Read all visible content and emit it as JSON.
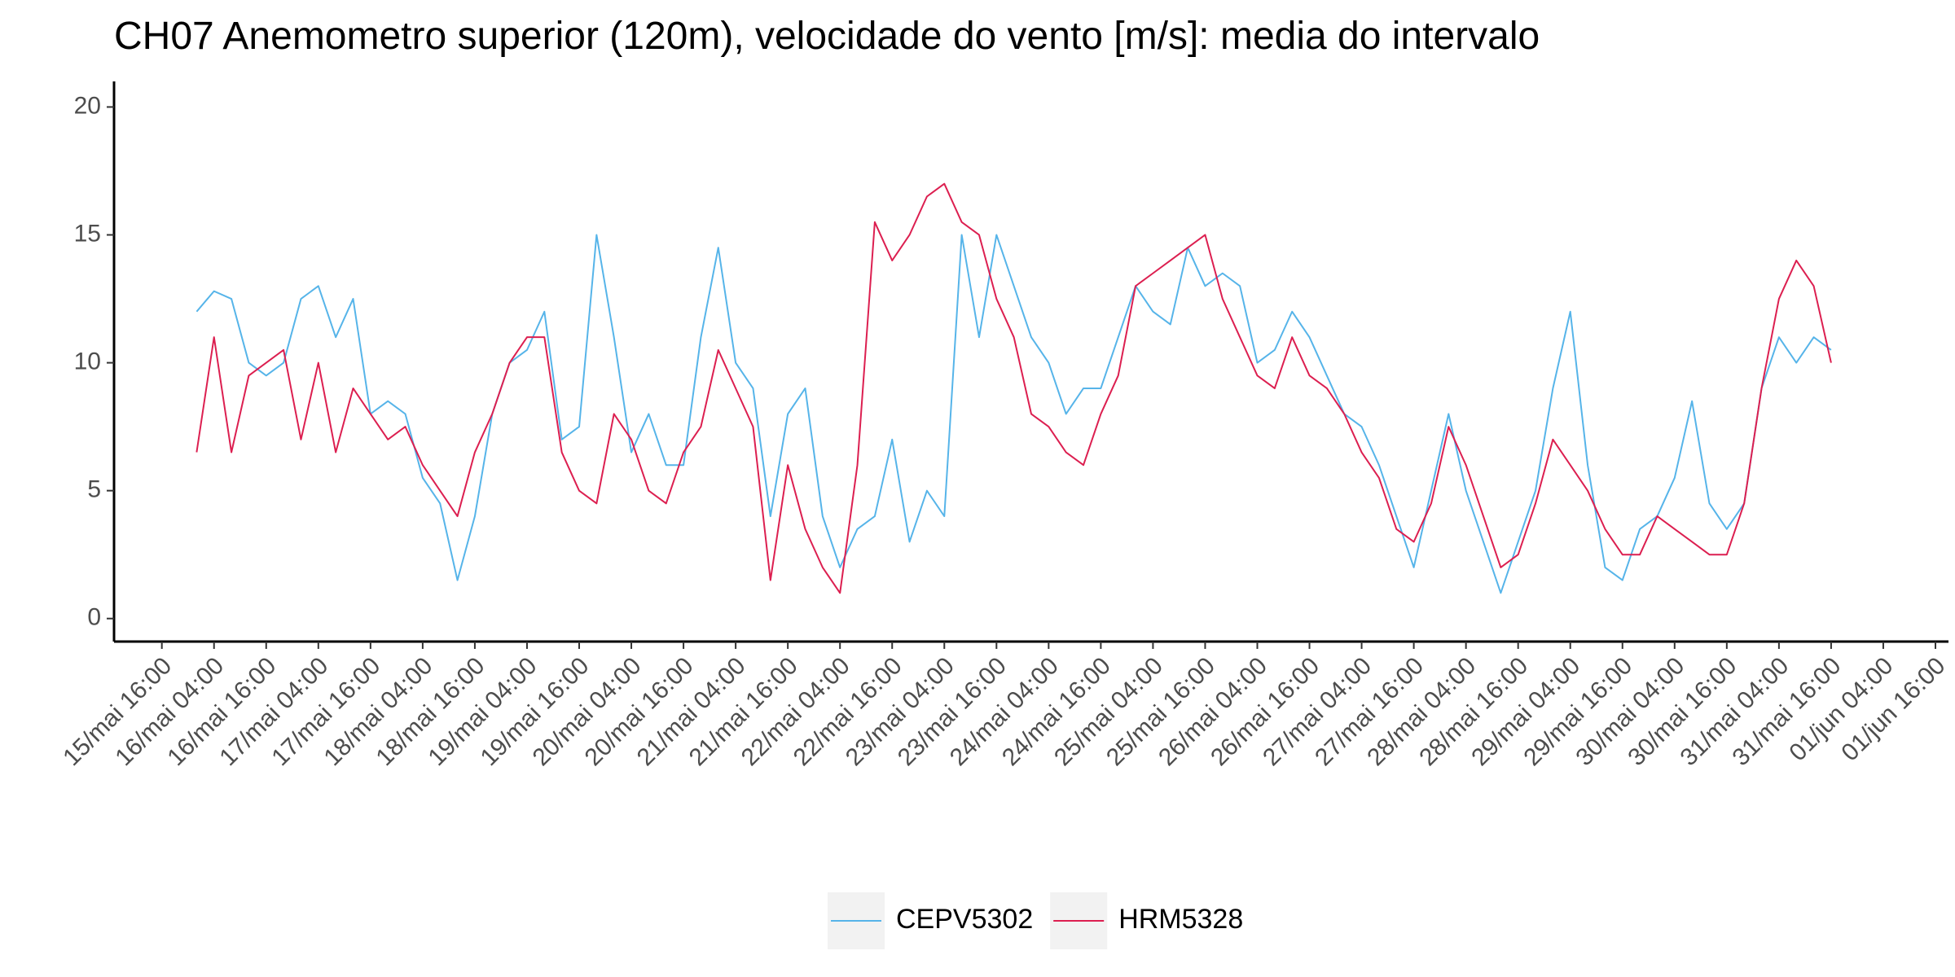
{
  "chart_data": {
    "type": "line",
    "title": "CH07 Anemometro superior (120m), velocidade do vento [m/s]: media do intervalo",
    "x": [
      "16/mai 00:00",
      "16/mai 04:00",
      "16/mai 08:00",
      "16/mai 12:00",
      "16/mai 16:00",
      "16/mai 20:00",
      "17/mai 00:00",
      "17/mai 04:00",
      "17/mai 08:00",
      "17/mai 12:00",
      "17/mai 16:00",
      "17/mai 20:00",
      "18/mai 00:00",
      "18/mai 04:00",
      "18/mai 08:00",
      "18/mai 12:00",
      "18/mai 16:00",
      "18/mai 20:00",
      "19/mai 00:00",
      "19/mai 04:00",
      "19/mai 08:00",
      "19/mai 12:00",
      "19/mai 16:00",
      "19/mai 20:00",
      "20/mai 00:00",
      "20/mai 04:00",
      "20/mai 08:00",
      "20/mai 12:00",
      "20/mai 16:00",
      "20/mai 20:00",
      "21/mai 00:00",
      "21/mai 04:00",
      "21/mai 08:00",
      "21/mai 12:00",
      "21/mai 16:00",
      "21/mai 20:00",
      "22/mai 00:00",
      "22/mai 04:00",
      "22/mai 08:00",
      "22/mai 12:00",
      "22/mai 16:00",
      "22/mai 20:00",
      "23/mai 00:00",
      "23/mai 04:00",
      "23/mai 08:00",
      "23/mai 12:00",
      "23/mai 16:00",
      "23/mai 20:00",
      "24/mai 00:00",
      "24/mai 04:00",
      "24/mai 08:00",
      "24/mai 12:00",
      "24/mai 16:00",
      "24/mai 20:00",
      "25/mai 00:00",
      "25/mai 04:00",
      "25/mai 08:00",
      "25/mai 12:00",
      "25/mai 16:00",
      "25/mai 20:00",
      "26/mai 00:00",
      "26/mai 04:00",
      "26/mai 08:00",
      "26/mai 12:00",
      "26/mai 16:00",
      "26/mai 20:00",
      "27/mai 00:00",
      "27/mai 04:00",
      "27/mai 08:00",
      "27/mai 12:00",
      "27/mai 16:00",
      "27/mai 20:00",
      "28/mai 00:00",
      "28/mai 04:00",
      "28/mai 08:00",
      "28/mai 12:00",
      "28/mai 16:00",
      "28/mai 20:00",
      "29/mai 00:00",
      "29/mai 04:00",
      "29/mai 08:00",
      "29/mai 12:00",
      "29/mai 16:00",
      "29/mai 20:00",
      "30/mai 00:00",
      "30/mai 04:00",
      "30/mai 08:00",
      "30/mai 12:00",
      "30/mai 16:00",
      "30/mai 20:00",
      "31/mai 00:00",
      "31/mai 04:00",
      "31/mai 08:00",
      "31/mai 12:00",
      "31/mai 16:00"
    ],
    "series": [
      {
        "name": "CEPV5302",
        "color": "#56b4e9",
        "values": [
          12,
          12.8,
          12.5,
          10,
          9.5,
          10,
          12.5,
          13,
          11,
          12.5,
          8,
          8.5,
          8,
          5.5,
          4.5,
          1.5,
          4,
          8,
          10,
          10.5,
          12,
          7,
          7.5,
          15,
          11,
          6.5,
          8,
          6,
          6,
          11,
          14.5,
          10,
          9,
          4,
          8,
          9,
          4,
          2,
          3.5,
          4,
          7,
          3,
          5,
          4,
          15,
          11,
          15,
          13,
          11,
          10,
          8,
          9,
          9,
          11,
          13,
          12,
          11.5,
          14.5,
          13,
          13.5,
          13,
          10,
          10.5,
          12,
          11,
          9.5,
          8,
          7.5,
          6,
          4,
          2,
          5,
          8,
          5,
          3,
          1,
          3,
          5,
          9,
          12,
          6,
          2,
          1.5,
          3.5,
          4,
          5.5,
          8.5,
          4.5,
          3.5,
          4.5,
          9,
          11,
          10,
          11,
          10.5
        ]
      },
      {
        "name": "HRM5328",
        "color": "#dc1f50",
        "values": [
          6.5,
          11,
          6.5,
          9.5,
          10,
          10.5,
          7,
          10,
          6.5,
          9,
          8,
          7,
          7.5,
          6,
          5,
          4,
          6.5,
          8,
          10,
          11,
          11,
          6.5,
          5,
          4.5,
          8,
          7,
          5,
          4.5,
          6.5,
          7.5,
          10.5,
          9,
          7.5,
          1.5,
          6,
          3.5,
          2,
          1,
          6,
          15.5,
          14,
          15,
          16.5,
          17,
          15.5,
          15,
          12.5,
          11,
          8,
          7.5,
          6.5,
          6,
          8,
          9.5,
          13,
          13.5,
          14,
          14.5,
          15,
          12.5,
          11,
          9.5,
          9,
          11,
          9.5,
          9,
          8,
          6.5,
          5.5,
          3.5,
          3,
          4.5,
          7.5,
          6,
          4,
          2,
          2.5,
          4.5,
          7,
          6,
          5,
          3.5,
          2.5,
          2.5,
          4,
          3.5,
          3,
          2.5,
          2.5,
          4.5,
          9,
          12.5,
          14,
          13,
          10
        ]
      }
    ],
    "xlim": [
      "15/mai 05:00",
      "01/jun 19:00"
    ],
    "xticks": [
      "15/mai 16:00",
      "16/mai 04:00",
      "16/mai 16:00",
      "17/mai 04:00",
      "17/mai 16:00",
      "18/mai 04:00",
      "18/mai 16:00",
      "19/mai 04:00",
      "19/mai 16:00",
      "20/mai 04:00",
      "20/mai 16:00",
      "21/mai 04:00",
      "21/mai 16:00",
      "22/mai 04:00",
      "22/mai 16:00",
      "23/mai 04:00",
      "23/mai 16:00",
      "24/mai 04:00",
      "24/mai 16:00",
      "25/mai 04:00",
      "25/mai 16:00",
      "26/mai 04:00",
      "26/mai 16:00",
      "27/mai 04:00",
      "27/mai 16:00",
      "28/mai 04:00",
      "28/mai 16:00",
      "29/mai 04:00",
      "29/mai 16:00",
      "30/mai 04:00",
      "30/mai 16:00",
      "31/mai 04:00",
      "31/mai 16:00",
      "01/jun 04:00",
      "01/jun 16:00"
    ],
    "ylim": [
      -0.9,
      21
    ],
    "yticks": [
      0,
      5,
      10,
      15,
      20
    ],
    "grid": false,
    "legend": "bottom"
  }
}
